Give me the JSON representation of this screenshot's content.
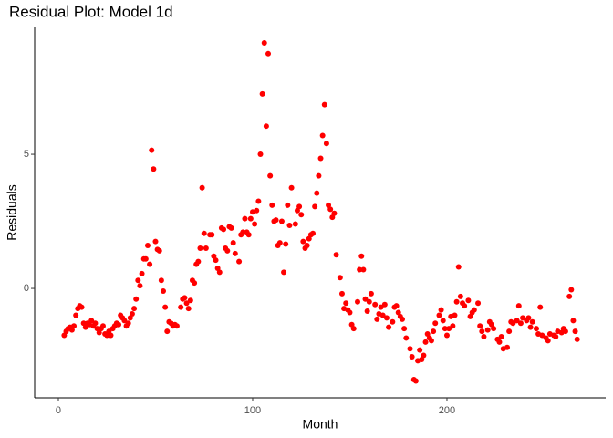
{
  "chart_data": {
    "type": "scatter",
    "title": "Residual Plot: Model 1d",
    "x_label": "Month",
    "y_label": "Residuals",
    "color": "#ff0000",
    "grid": false,
    "xlim": [
      -12.2,
      281.7
    ],
    "ylim": [
      -4.08,
      9.73
    ],
    "xticks": [
      0,
      100,
      200
    ],
    "yticks": [
      0,
      5
    ],
    "x": [
      3,
      4,
      5,
      6,
      7,
      8,
      9,
      10,
      11,
      12,
      13,
      14,
      15,
      16,
      17,
      18,
      19,
      20,
      21,
      22,
      23,
      24,
      25,
      26,
      27,
      28,
      29,
      30,
      31,
      32,
      33,
      34,
      35,
      36,
      37,
      38,
      39,
      40,
      41,
      42,
      43,
      44,
      45,
      46,
      47,
      48,
      49,
      50,
      51,
      52,
      53,
      54,
      55,
      56,
      57,
      58,
      59,
      60,
      61,
      63,
      64,
      65,
      66,
      67,
      68,
      69,
      70,
      71,
      72,
      73,
      74,
      75,
      76,
      78,
      79,
      80,
      81,
      82,
      83,
      84,
      85,
      86,
      87,
      88,
      89,
      90,
      91,
      93,
      94,
      95,
      96,
      97,
      98,
      99,
      100,
      101,
      102,
      103,
      104,
      105,
      106,
      107,
      108,
      109,
      110,
      111,
      112,
      113,
      114,
      115,
      116,
      117,
      118,
      119,
      120,
      122,
      123,
      124,
      125,
      126,
      127,
      128,
      129,
      130,
      131,
      132,
      133,
      134,
      135,
      136,
      137,
      138,
      139,
      140,
      141,
      142,
      143,
      145,
      146,
      147,
      148,
      149,
      150,
      151,
      152,
      154,
      155,
      156,
      157,
      158,
      159,
      160,
      161,
      163,
      164,
      165,
      166,
      167,
      168,
      169,
      170,
      172,
      173,
      174,
      175,
      176,
      177,
      178,
      179,
      181,
      182,
      183,
      184,
      185,
      186,
      187,
      188,
      189,
      190,
      191,
      192,
      193,
      194,
      196,
      197,
      198,
      199,
      200,
      201,
      202,
      203,
      204,
      205,
      206,
      207,
      208,
      209,
      211,
      212,
      213,
      214,
      216,
      217,
      218,
      219,
      221,
      222,
      223,
      224,
      226,
      227,
      228,
      229,
      231,
      232,
      233,
      234,
      236,
      237,
      238,
      239,
      241,
      242,
      243,
      244,
      246,
      247,
      248,
      249,
      251,
      252,
      253,
      255,
      256,
      257,
      259,
      260,
      261,
      263,
      264,
      265,
      266,
      267
    ],
    "values": [
      -1.75,
      -1.6,
      -1.5,
      -1.45,
      -1.55,
      -1.4,
      -1.0,
      -0.75,
      -0.65,
      -0.7,
      -1.3,
      -1.45,
      -1.3,
      -1.35,
      -1.2,
      -1.4,
      -1.3,
      -1.5,
      -1.65,
      -1.5,
      -1.4,
      -1.7,
      -1.75,
      -1.6,
      -1.75,
      -1.5,
      -1.4,
      -1.3,
      -1.35,
      -1.0,
      -1.1,
      -1.2,
      -1.4,
      -1.3,
      -1.1,
      -0.95,
      -0.75,
      -0.4,
      0.3,
      0.1,
      0.55,
      1.1,
      1.1,
      1.6,
      0.9,
      5.15,
      4.45,
      1.75,
      1.45,
      1.4,
      0.3,
      -0.1,
      -0.7,
      -1.6,
      -1.25,
      -1.3,
      -1.4,
      -1.35,
      -1.4,
      -0.7,
      -0.4,
      -0.35,
      -0.55,
      -0.75,
      -0.45,
      0.3,
      0.2,
      0.9,
      1.0,
      1.5,
      3.75,
      2.05,
      1.5,
      2.0,
      2.0,
      1.2,
      1.05,
      0.75,
      0.6,
      2.25,
      2.2,
      1.5,
      1.4,
      2.3,
      2.25,
      1.7,
      1.3,
      1.0,
      2.0,
      2.1,
      2.6,
      2.1,
      2.0,
      2.6,
      2.85,
      2.4,
      2.9,
      3.25,
      5.0,
      7.25,
      9.15,
      6.05,
      8.75,
      4.2,
      3.1,
      2.5,
      2.55,
      1.6,
      1.7,
      2.5,
      0.6,
      1.65,
      3.1,
      2.35,
      3.75,
      2.4,
      2.9,
      3.05,
      2.75,
      1.75,
      1.5,
      1.6,
      1.85,
      2.0,
      2.05,
      3.05,
      3.55,
      4.2,
      4.85,
      5.7,
      6.85,
      5.4,
      3.1,
      2.95,
      2.65,
      2.8,
      1.25,
      0.4,
      -0.2,
      -0.75,
      -0.55,
      -0.8,
      -0.9,
      -1.35,
      -1.5,
      -0.5,
      0.7,
      1.2,
      0.7,
      -0.4,
      -0.85,
      -0.5,
      -0.2,
      -0.6,
      -1.15,
      -0.95,
      -0.7,
      -1.0,
      -0.6,
      -1.1,
      -1.45,
      -1.25,
      -0.7,
      -0.65,
      -0.9,
      -1.05,
      -1.15,
      -1.5,
      -1.85,
      -2.25,
      -2.55,
      -3.4,
      -3.45,
      -2.7,
      -2.3,
      -2.65,
      -2.5,
      -2.0,
      -1.7,
      -1.85,
      -1.95,
      -1.6,
      -1.3,
      -1.0,
      -0.8,
      -1.2,
      -1.5,
      -1.75,
      -1.5,
      -1.05,
      -1.4,
      -1.0,
      -0.5,
      0.8,
      -0.3,
      -0.55,
      -0.65,
      -0.45,
      -1.05,
      -0.9,
      -0.8,
      -0.55,
      -1.4,
      -1.6,
      -1.8,
      -1.55,
      -1.25,
      -1.35,
      -1.5,
      -1.9,
      -2.0,
      -1.8,
      -2.25,
      -2.2,
      -1.6,
      -1.25,
      -1.3,
      -1.2,
      -0.65,
      -1.3,
      -1.1,
      -1.2,
      -1.1,
      -1.45,
      -1.25,
      -1.5,
      -1.7,
      -0.7,
      -1.75,
      -1.85,
      -1.95,
      -1.7,
      -1.75,
      -1.8,
      -1.6,
      -1.65,
      -1.5,
      -1.6,
      -0.3,
      -0.05,
      -1.2,
      -1.6,
      -1.9
    ]
  }
}
